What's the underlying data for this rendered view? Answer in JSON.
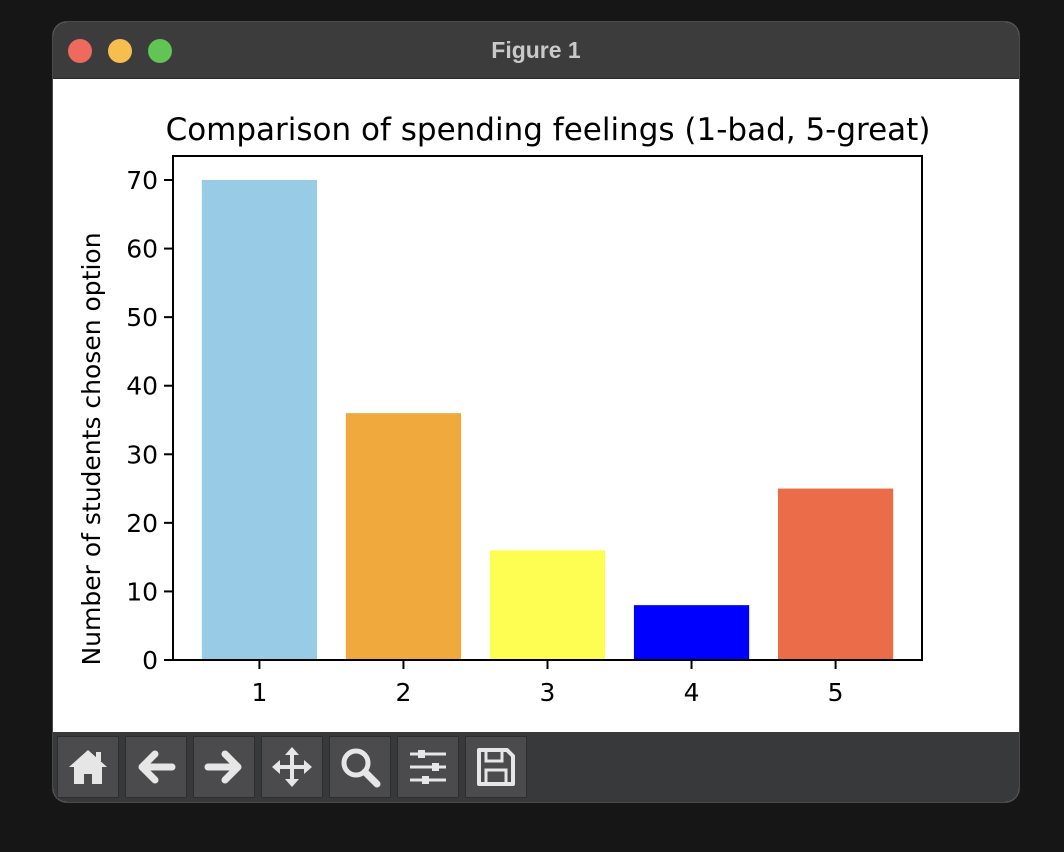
{
  "window": {
    "title": "Figure 1",
    "traffic_lights": {
      "close": "#ee6a5f",
      "minimize": "#f5be4f",
      "maximize": "#61c454"
    }
  },
  "toolbar": {
    "buttons": [
      {
        "icon": "home-icon",
        "name": "home-button"
      },
      {
        "icon": "back-arrow-icon",
        "name": "back-button"
      },
      {
        "icon": "forward-arrow-icon",
        "name": "forward-button"
      },
      {
        "icon": "pan-move-icon",
        "name": "pan-button"
      },
      {
        "icon": "zoom-magnifier-icon",
        "name": "zoom-button"
      },
      {
        "icon": "configure-sliders-icon",
        "name": "configure-subplots-button"
      },
      {
        "icon": "save-floppy-icon",
        "name": "save-button"
      }
    ]
  },
  "chart_data": {
    "type": "bar",
    "title": "Comparison of spending feelings (1-bad, 5-great)",
    "xlabel": "",
    "ylabel": "Number of students chosen option",
    "categories": [
      "1",
      "2",
      "3",
      "4",
      "5"
    ],
    "values": [
      70,
      36,
      16,
      8,
      25
    ],
    "colors": [
      "#98cbe6",
      "#f0a93d",
      "#fefe52",
      "#0000fe",
      "#ea6c48"
    ],
    "ylim": [
      0,
      73.5
    ],
    "yticks": [
      0,
      10,
      20,
      30,
      40,
      50,
      60,
      70
    ],
    "grid": false,
    "legend": "none"
  }
}
